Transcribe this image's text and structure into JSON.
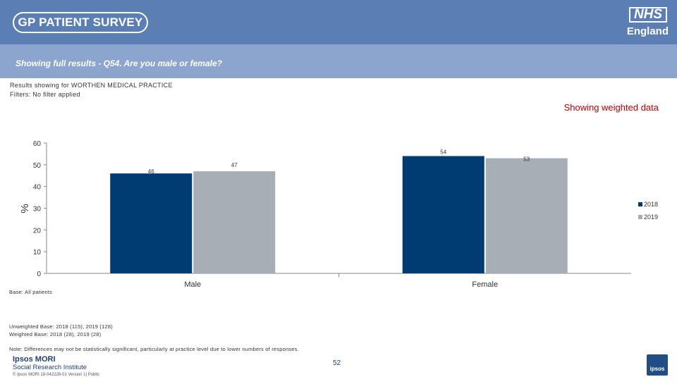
{
  "header": {
    "logo_text": "GP PATIENT SURVEY",
    "nhs_text": "NHS",
    "england_text": "England"
  },
  "question": "Showing full results - Q54.  Are you male or female?",
  "results_for": "Results showing for WORTHEN MEDICAL PRACTICE",
  "filters": "Filters: No filter applied",
  "weighted_label": "Showing weighted data",
  "base_label": "Base: All patients",
  "unweighted_base": "Unweighted Base: 2018 (115), 2019 (128)",
  "weighted_base": "Weighted Base: 2018 (28), 2019 (28)",
  "note": "Note: Differences may not be statistically significant, particularly at practice level due to lower numbers of responses.",
  "footer": {
    "ipsos": "Ipsos MORI",
    "sri": "Social Research Institute",
    "copyright": "© Ipsos MORI      18-042228-01 Version 1| Public",
    "page": "52",
    "logo": "ipsos"
  },
  "colors": {
    "s2018": "#003b71",
    "s2019": "#a7aeb5",
    "header": "#5b7fb5",
    "subheader": "#8ba5cf",
    "accent_red": "#c00000"
  },
  "chart_data": {
    "type": "bar",
    "categories": [
      "Male",
      "Female"
    ],
    "series": [
      {
        "name": "2018",
        "values": [
          46,
          54
        ]
      },
      {
        "name": "2019",
        "values": [
          47,
          53
        ]
      }
    ],
    "ylabel": "%",
    "ylim": [
      0,
      60
    ],
    "yticks": [
      0,
      10,
      20,
      30,
      40,
      50,
      60
    ],
    "legend": "right",
    "grid": false
  }
}
